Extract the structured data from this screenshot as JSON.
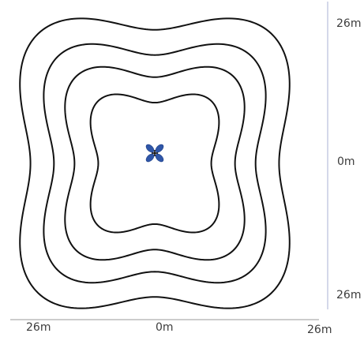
{
  "colors": {
    "contour": "#111111",
    "axis_line_vertical": "#aab0d6",
    "axis_line_horizontal": "#9a9a9a",
    "emitter_lobe": "#2f56a8",
    "emitter_center": "#111111",
    "label_text": "#3c3c3c"
  },
  "icons": {
    "emitter": "quad-lobe-emitter-icon"
  },
  "axes": {
    "right": {
      "top_label": "26m",
      "middle_label": "0m",
      "bottom_label": "26m"
    },
    "bottom": {
      "left_label": "26m",
      "middle_label": "0m",
      "right_label": "26m"
    }
  },
  "contours": {
    "count": 4,
    "relative_sizes": [
      1.0,
      0.82,
      0.66,
      0.47
    ],
    "shape": "four-lobed rounded square"
  }
}
